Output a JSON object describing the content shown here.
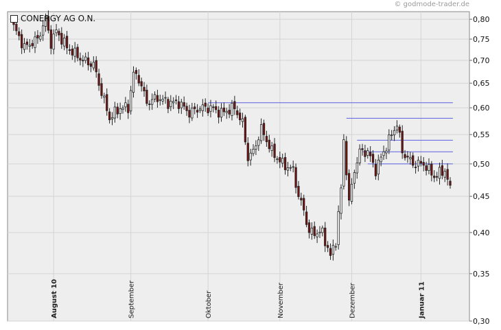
{
  "credit": "© godmode-trader.de",
  "legend": {
    "label": "CONERGY AG O.N."
  },
  "chart_data": {
    "type": "candlestick",
    "title": "",
    "scale": "log",
    "ylim": [
      0.3,
      0.82
    ],
    "y_ticks": [
      {
        "v": 0.8,
        "label": "0,80"
      },
      {
        "v": 0.75,
        "label": "0,75"
      },
      {
        "v": 0.7,
        "label": "0,70"
      },
      {
        "v": 0.65,
        "label": "0,65"
      },
      {
        "v": 0.6,
        "label": "0,60"
      },
      {
        "v": 0.55,
        "label": "0,55"
      },
      {
        "v": 0.5,
        "label": "0,50"
      },
      {
        "v": 0.45,
        "label": "0,45"
      },
      {
        "v": 0.4,
        "label": "0,40"
      },
      {
        "v": 0.35,
        "label": "0,35"
      },
      {
        "v": 0.3,
        "label": "0,30"
      }
    ],
    "x_ticks": [
      {
        "i": 15,
        "label": "August 10",
        "bold": true
      },
      {
        "i": 44,
        "label": "September",
        "bold": false
      },
      {
        "i": 73,
        "label": "Oktober",
        "bold": false
      },
      {
        "i": 100,
        "label": "November",
        "bold": false
      },
      {
        "i": 127,
        "label": "Dezember",
        "bold": false
      },
      {
        "i": 153,
        "label": "Januar 11",
        "bold": true
      }
    ],
    "n_bars": 165,
    "grid": true,
    "legend_position": "top-left",
    "colors": {
      "up": "#ffffff",
      "down": "#7a1010",
      "outline": "#222222",
      "level": "#5a5fe0",
      "plot_bg": "#eeeeee"
    },
    "levels": [
      {
        "v": 0.61,
        "from": 73,
        "to": 165
      },
      {
        "v": 0.58,
        "from": 125,
        "to": 165
      },
      {
        "v": 0.54,
        "from": 129,
        "to": 165
      },
      {
        "v": 0.52,
        "from": 131,
        "to": 165
      },
      {
        "v": 0.5,
        "from": 133,
        "to": 165
      }
    ],
    "anchors": [
      [
        0,
        0.78
      ],
      [
        4,
        0.73
      ],
      [
        9,
        0.75
      ],
      [
        12,
        0.8
      ],
      [
        14,
        0.74
      ],
      [
        16,
        0.77
      ],
      [
        20,
        0.73
      ],
      [
        26,
        0.7
      ],
      [
        30,
        0.69
      ],
      [
        33,
        0.63
      ],
      [
        36,
        0.58
      ],
      [
        40,
        0.6
      ],
      [
        43,
        0.6
      ],
      [
        45,
        0.67
      ],
      [
        47,
        0.66
      ],
      [
        50,
        0.61
      ],
      [
        54,
        0.62
      ],
      [
        58,
        0.61
      ],
      [
        62,
        0.61
      ],
      [
        66,
        0.59
      ],
      [
        70,
        0.6
      ],
      [
        74,
        0.6
      ],
      [
        78,
        0.59
      ],
      [
        83,
        0.6
      ],
      [
        86,
        0.57
      ],
      [
        88,
        0.51
      ],
      [
        90,
        0.52
      ],
      [
        93,
        0.56
      ],
      [
        97,
        0.52
      ],
      [
        101,
        0.5
      ],
      [
        105,
        0.49
      ],
      [
        107,
        0.45
      ],
      [
        109,
        0.43
      ],
      [
        111,
        0.4
      ],
      [
        114,
        0.4
      ],
      [
        116,
        0.4
      ],
      [
        119,
        0.37
      ],
      [
        121,
        0.39
      ],
      [
        123,
        0.46
      ],
      [
        124,
        0.54
      ],
      [
        126,
        0.44
      ],
      [
        128,
        0.49
      ],
      [
        130,
        0.52
      ],
      [
        133,
        0.52
      ],
      [
        136,
        0.49
      ],
      [
        139,
        0.52
      ],
      [
        142,
        0.55
      ],
      [
        144,
        0.57
      ],
      [
        146,
        0.52
      ],
      [
        150,
        0.5
      ],
      [
        154,
        0.5
      ],
      [
        158,
        0.48
      ],
      [
        162,
        0.49
      ],
      [
        164,
        0.46
      ]
    ]
  }
}
